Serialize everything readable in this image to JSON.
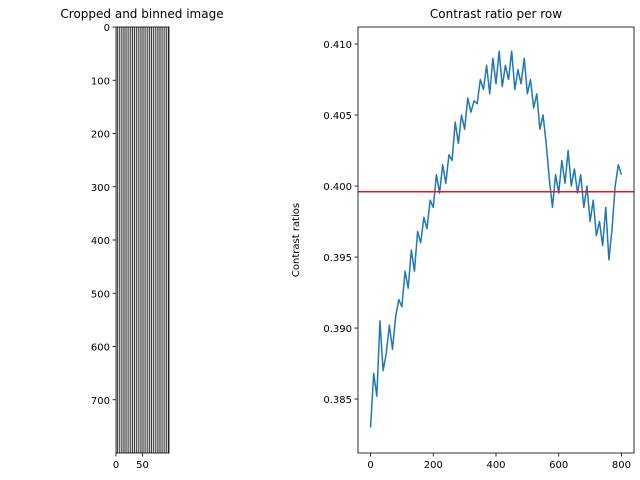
{
  "chart_data": [
    {
      "type": "image",
      "title": "Cropped and binned image",
      "description_axes": "pixel grid",
      "xlim": [
        0,
        100
      ],
      "ylim": [
        800,
        0
      ],
      "xticks": [
        0,
        50
      ],
      "xtick_labels": [
        "0",
        "50"
      ],
      "yticks": [
        0,
        100,
        200,
        300,
        400,
        500,
        600,
        700
      ],
      "ytick_labels": [
        "0",
        "100",
        "200",
        "300",
        "400",
        "500",
        "600",
        "700"
      ],
      "stripe_columns": 50,
      "stripe_colors": [
        "#d8d8d8",
        "#3a3a3a"
      ]
    },
    {
      "type": "line",
      "title": "Contrast ratio per row",
      "xlabel": "",
      "ylabel": "Contrast ratios",
      "xlim": [
        -40,
        840
      ],
      "ylim": [
        0.3812,
        0.4112
      ],
      "xticks": [
        0,
        200,
        400,
        600,
        800
      ],
      "xtick_labels": [
        "0",
        "200",
        "400",
        "600",
        "800"
      ],
      "yticks": [
        0.385,
        0.39,
        0.395,
        0.4,
        0.405,
        0.41
      ],
      "ytick_labels": [
        "0.385",
        "0.390",
        "0.395",
        "0.400",
        "0.405",
        "0.410"
      ],
      "series": [
        {
          "color": "#1f77b4",
          "x": [
            0,
            10,
            20,
            30,
            40,
            50,
            60,
            70,
            80,
            90,
            100,
            110,
            120,
            130,
            140,
            150,
            160,
            170,
            180,
            190,
            200,
            210,
            220,
            230,
            240,
            250,
            260,
            270,
            280,
            290,
            300,
            310,
            320,
            330,
            340,
            350,
            360,
            370,
            380,
            390,
            400,
            410,
            420,
            430,
            440,
            450,
            460,
            470,
            480,
            490,
            500,
            510,
            520,
            530,
            540,
            550,
            560,
            570,
            580,
            590,
            600,
            610,
            620,
            630,
            640,
            650,
            660,
            670,
            680,
            690,
            700,
            710,
            720,
            730,
            740,
            750,
            760,
            770,
            780,
            790,
            800
          ],
          "y": [
            0.383,
            0.3868,
            0.3852,
            0.3905,
            0.387,
            0.3882,
            0.3902,
            0.3885,
            0.3908,
            0.392,
            0.3915,
            0.394,
            0.3928,
            0.3955,
            0.394,
            0.3968,
            0.396,
            0.3978,
            0.397,
            0.399,
            0.3985,
            0.4008,
            0.3995,
            0.4015,
            0.4002,
            0.4022,
            0.4018,
            0.4045,
            0.403,
            0.405,
            0.404,
            0.4062,
            0.4052,
            0.406,
            0.4058,
            0.4075,
            0.4068,
            0.4085,
            0.4065,
            0.409,
            0.4072,
            0.4095,
            0.407,
            0.4085,
            0.4075,
            0.4095,
            0.4068,
            0.4082,
            0.4072,
            0.409,
            0.4065,
            0.4075,
            0.4055,
            0.4065,
            0.404,
            0.405,
            0.403,
            0.4005,
            0.3985,
            0.4008,
            0.3995,
            0.4018,
            0.4002,
            0.4025,
            0.4,
            0.4012,
            0.3995,
            0.4008,
            0.3985,
            0.4,
            0.3975,
            0.399,
            0.3965,
            0.3975,
            0.3958,
            0.3985,
            0.3948,
            0.397,
            0.4,
            0.4015,
            0.4008
          ]
        }
      ],
      "hlines": [
        {
          "y": 0.3996,
          "color": "#e31a1c"
        }
      ]
    }
  ]
}
